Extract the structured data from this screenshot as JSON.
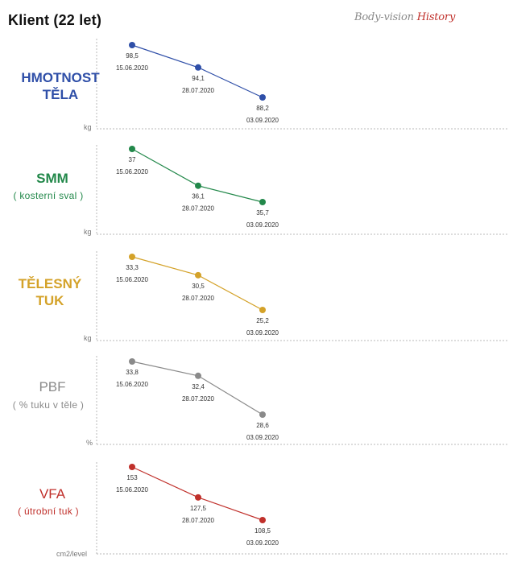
{
  "header": {
    "title": "Klient (22 let)",
    "brand_main": "Body-vision",
    "brand_accent": "History"
  },
  "panels": [
    {
      "title_line1": "HMOTNOST",
      "title_line2": "TĚLA",
      "subtitle": "",
      "unit": "kg",
      "color": "#2f4fa8"
    },
    {
      "title_line1": "SMM",
      "title_line2": "",
      "subtitle": "( kosterní sval )",
      "unit": "kg",
      "color": "#22884a"
    },
    {
      "title_line1": "TĚLESNÝ",
      "title_line2": "TUK",
      "subtitle": "",
      "unit": "kg",
      "color": "#d4a229"
    },
    {
      "title_line1": "PBF",
      "title_line2": "",
      "subtitle": "( % tuku v těle )",
      "unit": "%",
      "color": "#8a8a8a"
    },
    {
      "title_line1": "VFA",
      "title_line2": "",
      "subtitle": "( útrobní tuk )",
      "unit": "cm2/level",
      "color": "#c0302b"
    }
  ],
  "chart_data": [
    {
      "type": "line",
      "x": [
        "15.06.2020",
        "28.07.2020",
        "03.09.2020"
      ],
      "series": [
        {
          "values": [
            98.5,
            94.1,
            88.2
          ],
          "labels": [
            "98,5",
            "94,1",
            "88,2"
          ]
        }
      ],
      "ylabel": "kg"
    },
    {
      "type": "line",
      "x": [
        "15.06.2020",
        "28.07.2020",
        "03.09.2020"
      ],
      "series": [
        {
          "values": [
            37,
            36.1,
            35.7
          ],
          "labels": [
            "37",
            "36,1",
            "35,7"
          ]
        }
      ],
      "ylabel": "kg"
    },
    {
      "type": "line",
      "x": [
        "15.06.2020",
        "28.07.2020",
        "03.09.2020"
      ],
      "series": [
        {
          "values": [
            33.3,
            30.5,
            25.2
          ],
          "labels": [
            "33,3",
            "30,5",
            "25,2"
          ]
        }
      ],
      "ylabel": "kg"
    },
    {
      "type": "line",
      "x": [
        "15.06.2020",
        "28.07.2020",
        "03.09.2020"
      ],
      "series": [
        {
          "values": [
            33.8,
            32.4,
            28.6
          ],
          "labels": [
            "33,8",
            "32,4",
            "28,6"
          ]
        }
      ],
      "ylabel": "%"
    },
    {
      "type": "line",
      "x": [
        "15.06.2020",
        "28.07.2020",
        "03.09.2020"
      ],
      "series": [
        {
          "values": [
            153,
            127.5,
            108.5
          ],
          "labels": [
            "153",
            "127,5",
            "108,5"
          ]
        }
      ],
      "ylabel": "cm2/level"
    }
  ]
}
